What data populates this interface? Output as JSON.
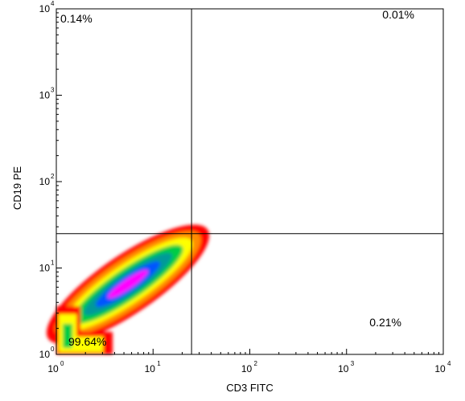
{
  "chart_data": {
    "type": "density-scatter",
    "xlabel": "CD3 FITC",
    "ylabel": "CD19 PE",
    "x_scale": "log",
    "y_scale": "log",
    "xlim": [
      1,
      10000
    ],
    "ylim": [
      1,
      10000
    ],
    "x_ticks": [
      {
        "base": "10",
        "exp": "0"
      },
      {
        "base": "10",
        "exp": "1"
      },
      {
        "base": "10",
        "exp": "2"
      },
      {
        "base": "10",
        "exp": "3"
      },
      {
        "base": "10",
        "exp": "4"
      }
    ],
    "y_ticks": [
      {
        "base": "10",
        "exp": "0"
      },
      {
        "base": "10",
        "exp": "1"
      },
      {
        "base": "10",
        "exp": "2"
      },
      {
        "base": "10",
        "exp": "3"
      },
      {
        "base": "10",
        "exp": "4"
      }
    ],
    "gate": {
      "x": 25,
      "y": 25
    },
    "quadrants": [
      {
        "name": "upper-left",
        "label": "0.14%"
      },
      {
        "name": "upper-right",
        "label": "0.01%"
      },
      {
        "name": "lower-left",
        "label": "99.64%"
      },
      {
        "name": "lower-right",
        "label": "0.21%"
      }
    ],
    "population": {
      "center_x": 5.5,
      "center_y": 6.5,
      "extent_x": [
        1,
        27
      ],
      "extent_y": [
        1,
        22
      ],
      "colormap": [
        "#ff0000",
        "#ff8c00",
        "#ffff00",
        "#00cc44",
        "#009999",
        "#0055ff",
        "#ff00ff"
      ]
    }
  }
}
